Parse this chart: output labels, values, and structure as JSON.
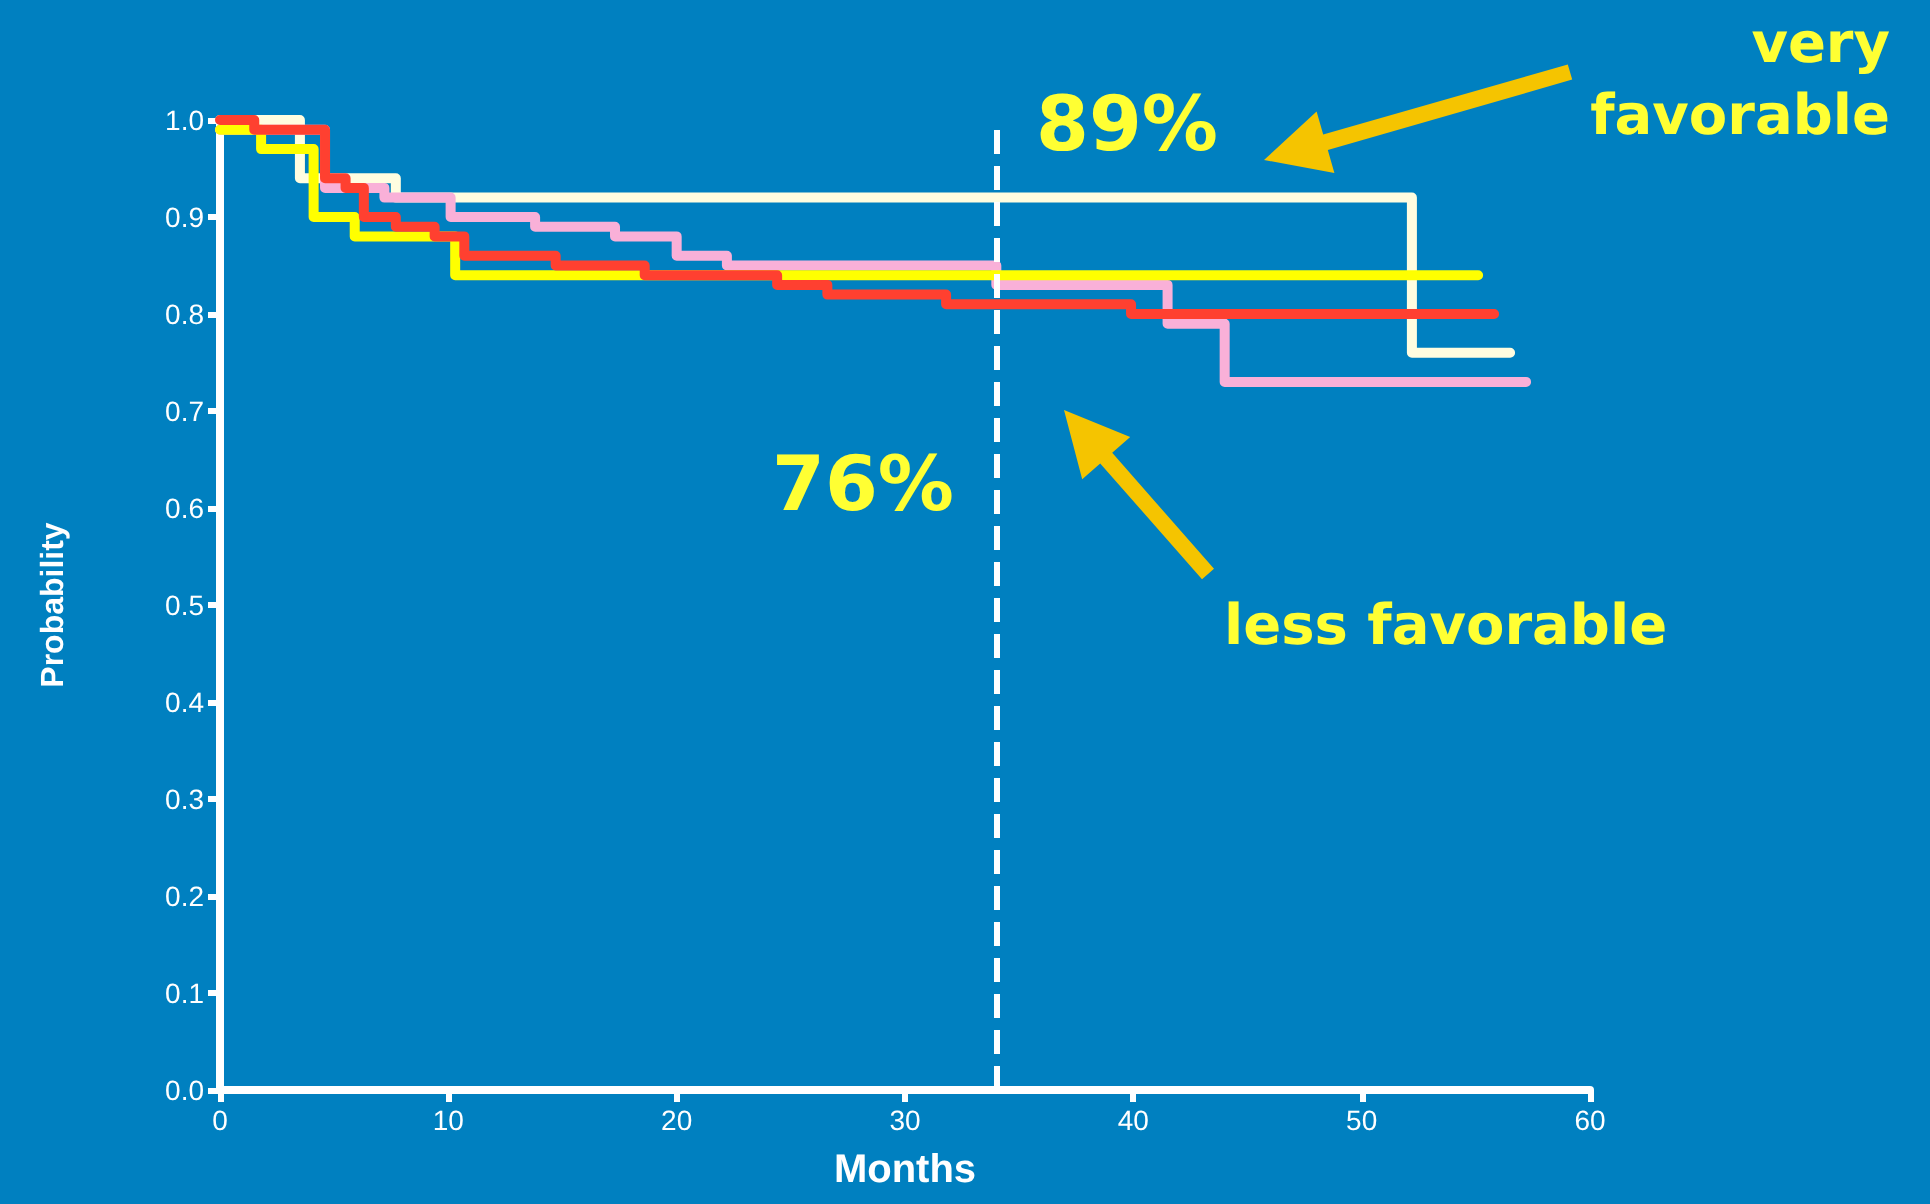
{
  "chart_data": {
    "type": "step",
    "xlabel": "Months",
    "ylabel": "Probability",
    "xlim": [
      0,
      60
    ],
    "ylim": [
      0,
      1
    ],
    "xticks": [
      0,
      10,
      20,
      30,
      40,
      50,
      60
    ],
    "yticks": [
      {
        "value": 0,
        "label": "0.0"
      },
      {
        "value": 0.1,
        "label": "0.1"
      },
      {
        "value": 0.2,
        "label": "0.2"
      },
      {
        "value": 0.3,
        "label": "0.3"
      },
      {
        "value": 0.4,
        "label": "0.4"
      },
      {
        "value": 0.5,
        "label": "0.5"
      },
      {
        "value": 0.6,
        "label": "0.6"
      },
      {
        "value": 0.7,
        "label": "0.7"
      },
      {
        "value": 0.8,
        "label": "0.8"
      },
      {
        "value": 0.9,
        "label": "0.9"
      },
      {
        "value": 1,
        "label": "1.0"
      }
    ],
    "grid": false,
    "marker": "none",
    "line_style": "solid",
    "series": [
      {
        "color": "#fffde0",
        "x": [
          0,
          3.5,
          7.7,
          52.2,
          56.5
        ],
        "values": [
          1.0,
          0.94,
          0.92,
          0.76,
          0.76
        ]
      },
      {
        "color": "#f9b0d8",
        "x": [
          0,
          1.5,
          4.6,
          7.2,
          10.1,
          13.8,
          17.3,
          20,
          22.2,
          34,
          41.5,
          44,
          57.2
        ],
        "values": [
          0.99,
          0.99,
          0.93,
          0.92,
          0.9,
          0.89,
          0.88,
          0.86,
          0.85,
          0.83,
          0.79,
          0.73,
          0.73
        ]
      },
      {
        "color": "#ffff00",
        "x": [
          0,
          0,
          1.8,
          4.1,
          5.9,
          10.3,
          55.1
        ],
        "values": [
          0.99,
          0.99,
          0.97,
          0.9,
          0.88,
          0.84,
          0.84
        ]
      },
      {
        "color": "#ff4030",
        "x": [
          0,
          1.5,
          4.6,
          5.5,
          6.3,
          7.7,
          8.5,
          9.4,
          10.7,
          14.7,
          18.6,
          24.4,
          26.6,
          31.8,
          39.9,
          55.8
        ],
        "values": [
          1.0,
          0.99,
          0.94,
          0.93,
          0.9,
          0.89,
          0.89,
          0.88,
          0.86,
          0.85,
          0.84,
          0.83,
          0.82,
          0.81,
          0.8,
          0.8
        ]
      }
    ],
    "ref_lines": [
      {
        "axis": "x",
        "value": 34,
        "color": "#ffffff",
        "line_style": "dashed"
      }
    ],
    "annotations": [
      "89%",
      "76%",
      "very favorable",
      "less favorable"
    ]
  }
}
